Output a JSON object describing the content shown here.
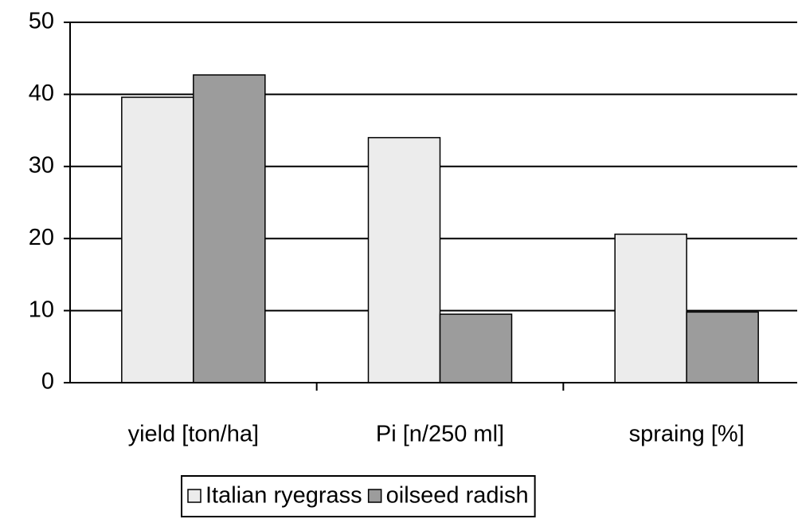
{
  "chart_data": {
    "type": "bar",
    "categories": [
      "yield [ton/ha]",
      "Pi [n/250 ml]",
      "spraing [%]"
    ],
    "series": [
      {
        "name": "Italian ryegrass",
        "color": "#ececec",
        "values": [
          39.6,
          34,
          20.6
        ]
      },
      {
        "name": "oilseed radish",
        "color": "#9c9c9c",
        "values": [
          42.7,
          9.5,
          9.8
        ]
      }
    ],
    "ylim": [
      0,
      50
    ],
    "yticks": [
      0,
      10,
      20,
      30,
      40,
      50
    ],
    "grid": true,
    "legend": "bottom"
  }
}
